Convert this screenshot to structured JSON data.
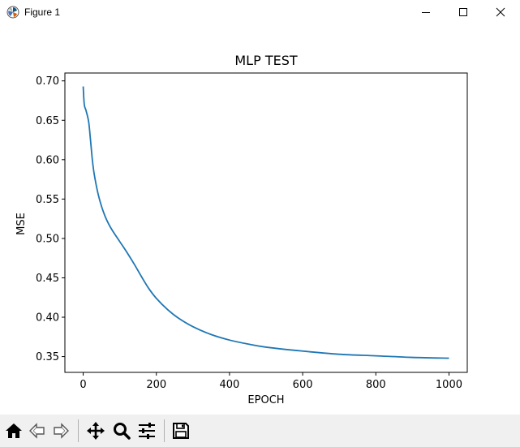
{
  "window": {
    "title": "Figure 1",
    "icon": "matplotlib-logo-icon",
    "controls": [
      "minimize-icon",
      "maximize-icon",
      "close-icon"
    ]
  },
  "toolbar": {
    "buttons": [
      {
        "name": "home-button",
        "icon": "home-icon"
      },
      {
        "name": "back-button",
        "icon": "back-arrow-icon"
      },
      {
        "name": "forward-button",
        "icon": "forward-arrow-icon"
      },
      {
        "name": "pan-button",
        "icon": "move-icon"
      },
      {
        "name": "zoom-button",
        "icon": "magnifier-icon"
      },
      {
        "name": "configure-subplots-button",
        "icon": "sliders-icon"
      },
      {
        "name": "save-button",
        "icon": "floppy-disk-icon"
      }
    ]
  },
  "chart_data": {
    "type": "line",
    "title": "MLP TEST",
    "xlabel": "EPOCH",
    "ylabel": "MSE",
    "xlim": [
      -50,
      1050
    ],
    "ylim": [
      0.33,
      0.71
    ],
    "xticks": [
      0,
      200,
      400,
      600,
      800,
      1000
    ],
    "yticks": [
      0.35,
      0.4,
      0.45,
      0.5,
      0.55,
      0.6,
      0.65,
      0.7
    ],
    "xtick_labels": [
      "0",
      "200",
      "400",
      "600",
      "800",
      "1000"
    ],
    "ytick_labels": [
      "0.35",
      "0.40",
      "0.45",
      "0.50",
      "0.55",
      "0.60",
      "0.65",
      "0.70"
    ],
    "grid": false,
    "color": "#1f77b4",
    "series": [
      {
        "name": "MSE",
        "x": [
          0,
          3,
          8,
          15,
          20,
          25,
          30,
          40,
          50,
          60,
          70,
          80,
          100,
          120,
          140,
          160,
          180,
          200,
          230,
          260,
          300,
          350,
          400,
          450,
          500,
          600,
          700,
          800,
          900,
          1000
        ],
        "values": [
          0.693,
          0.67,
          0.662,
          0.648,
          0.625,
          0.6,
          0.582,
          0.558,
          0.541,
          0.528,
          0.518,
          0.51,
          0.496,
          0.482,
          0.467,
          0.451,
          0.436,
          0.424,
          0.41,
          0.399,
          0.388,
          0.378,
          0.371,
          0.366,
          0.362,
          0.357,
          0.353,
          0.351,
          0.349,
          0.348
        ]
      }
    ]
  }
}
